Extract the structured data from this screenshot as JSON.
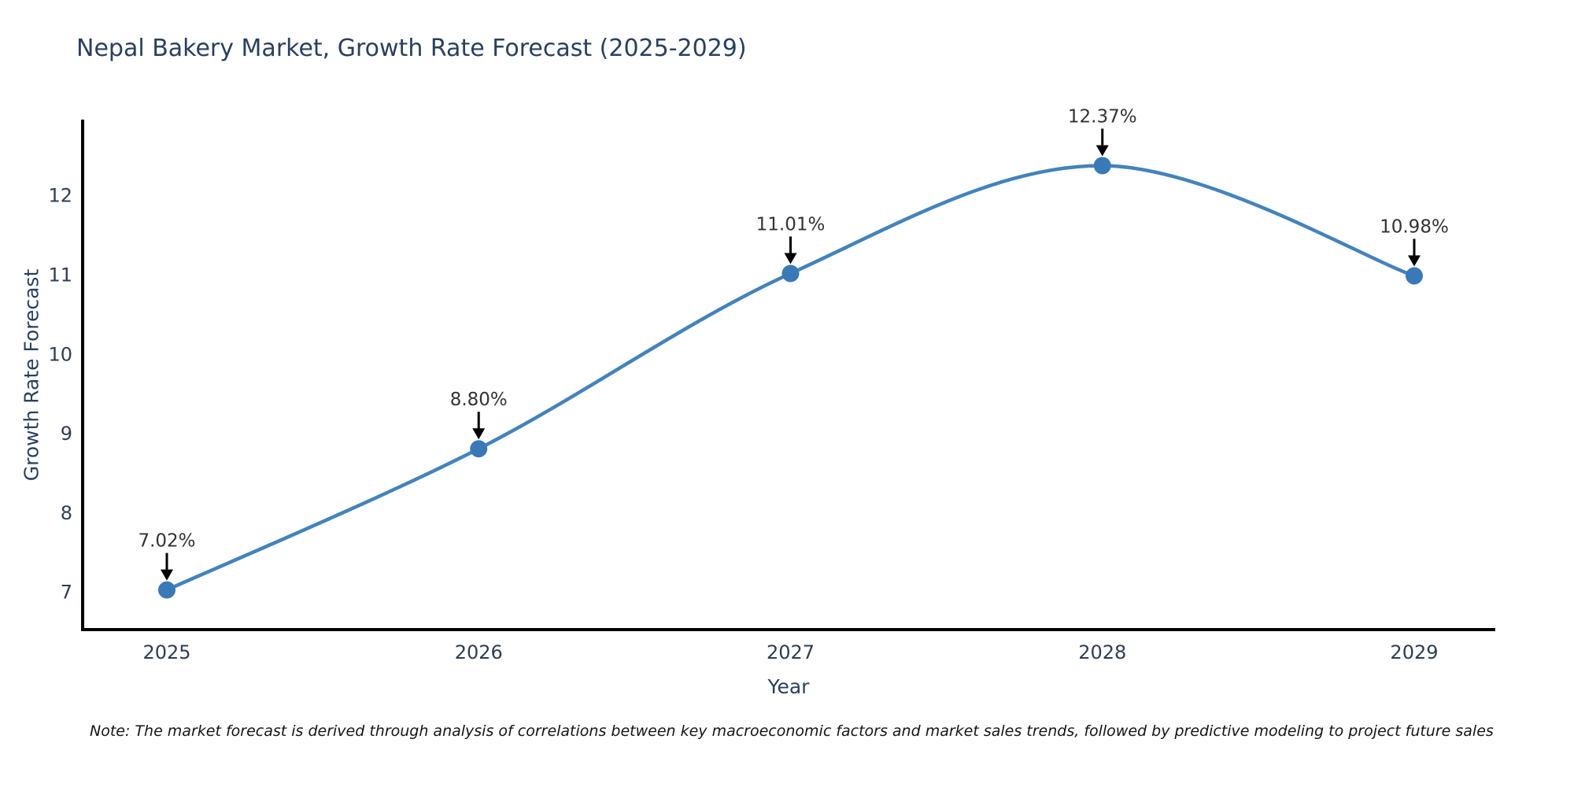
{
  "title": "Nepal Bakery Market, Growth Rate Forecast (2025-2029)",
  "footnote": "Note: The market forecast is derived through analysis of correlations between key macroeconomic factors and market sales trends, followed by predictive modeling to project future sales",
  "chart_data": {
    "type": "line",
    "title": "Nepal Bakery Market, Growth Rate Forecast (2025-2029)",
    "xlabel": "Year",
    "ylabel": "Growth Rate Forecast",
    "x": [
      2025,
      2026,
      2027,
      2028,
      2029
    ],
    "y": [
      7.02,
      8.8,
      11.01,
      12.37,
      10.98
    ],
    "point_labels": [
      "7.02%",
      "8.80%",
      "11.01%",
      "12.37%",
      "10.98%"
    ],
    "xticks": [
      "2025",
      "2026",
      "2027",
      "2028",
      "2029"
    ],
    "yticks": [
      7,
      8,
      9,
      10,
      11,
      12
    ],
    "xlim": [
      2024.73,
      2029.26
    ],
    "ylim": [
      6.52,
      12.95
    ],
    "grid": false,
    "legend": null,
    "line_shape": "spline",
    "line_color": "#4483bb",
    "marker_color": "#3a79b7",
    "annotation_arrow_color": "#000000",
    "axis_spine_color": "#000000"
  },
  "colors": {
    "background": "#ffffff",
    "title_text": "#2a3f5f",
    "axis_text": "#2a3f5f",
    "tick_text": "#2f3d54",
    "annotation_text": "#333333"
  }
}
